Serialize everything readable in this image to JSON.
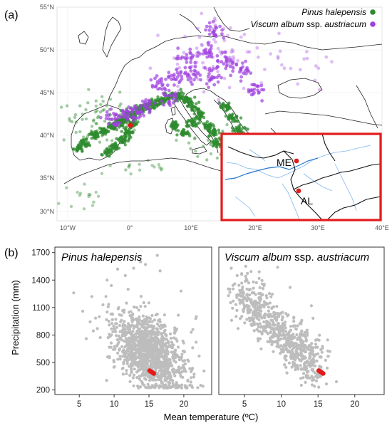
{
  "panel_a": {
    "label": "(a)",
    "legend": {
      "pinus": {
        "italic": "Pinus halepensis",
        "color": "#2e8b2e"
      },
      "viscum": {
        "italic_a": "Viscum album",
        "plain": " ssp. ",
        "italic_b": "austriacum",
        "color": "#a040e0"
      }
    },
    "lat_labels": [
      "30°N",
      "35°N",
      "40°N",
      "45°N",
      "50°N",
      "55°N"
    ],
    "lon_labels": [
      "10°W",
      "0°",
      "10°E",
      "20°E",
      "30°E",
      "40°E"
    ],
    "inset": {
      "border_color": "#e21b1b",
      "sites": [
        {
          "label": "ME"
        },
        {
          "label": "AL"
        }
      ]
    },
    "site_color": "#e21b1b"
  },
  "chart_data": [
    {
      "type": "scatter",
      "title_italic": "Pinus halepensis",
      "panel_label": "(b)",
      "xlabel": "Mean temperature (ºC)",
      "ylabel": "Precipitation (mm)",
      "xlim": [
        1.5,
        24
      ],
      "ylim": [
        150,
        1760
      ],
      "xticks": [
        5,
        10,
        15,
        20
      ],
      "yticks": [
        200,
        500,
        800,
        1100,
        1400,
        1700
      ],
      "tick_labels_x": [
        "5",
        "10",
        "15",
        "20"
      ],
      "tick_labels_y": [
        "200",
        "500",
        "800",
        "1100",
        "1400",
        "1700"
      ],
      "background_color": "#bdbdbd",
      "highlight_color": "#e21b1b",
      "background_cloud": {
        "center": [
          15.0,
          620
        ],
        "spread": [
          2.6,
          190
        ],
        "count": 1200,
        "outliers": [
          [
            4.2,
            1260
          ],
          [
            5.5,
            1060
          ],
          [
            6.8,
            1220
          ],
          [
            8.4,
            1130
          ],
          [
            9.0,
            1400
          ],
          [
            9.6,
            1340
          ],
          [
            10.5,
            1520
          ],
          [
            11.6,
            1450
          ],
          [
            12.8,
            1530
          ],
          [
            13.8,
            1600
          ],
          [
            16.2,
            1670
          ],
          [
            16.6,
            1500
          ],
          [
            14.5,
            1570
          ],
          [
            19.6,
            1280
          ],
          [
            21.3,
            860
          ],
          [
            22.2,
            570
          ],
          [
            21.8,
            1000
          ],
          [
            7.6,
            870
          ],
          [
            6.0,
            760
          ],
          [
            12.0,
            1300
          ]
        ]
      },
      "highlight_points": [
        [
          15.1,
          410
        ],
        [
          15.3,
          400
        ],
        [
          15.5,
          390
        ],
        [
          15.7,
          380
        ]
      ]
    },
    {
      "type": "scatter",
      "title_italic_a": "Viscum album",
      "title_plain": " ssp. ",
      "title_italic_b": "austriacum",
      "xlim": [
        1.5,
        24
      ],
      "ylim": [
        150,
        1760
      ],
      "xticks": [
        5,
        10,
        15,
        20
      ],
      "tick_labels_x": [
        "5",
        "10",
        "15",
        "20"
      ],
      "background_color": "#bdbdbd",
      "highlight_color": "#e21b1b",
      "background_cloud": {
        "center_start": [
          4.5,
          1250
        ],
        "center_end": [
          15.0,
          420
        ],
        "spread": [
          1.0,
          130
        ],
        "count": 700,
        "outliers": [
          [
            3.2,
            1530
          ],
          [
            4.0,
            1450
          ],
          [
            5.6,
            1620
          ],
          [
            7.8,
            1620
          ],
          [
            9.5,
            1540
          ],
          [
            11.2,
            1320
          ],
          [
            14.1,
            1120
          ],
          [
            12.8,
            960
          ],
          [
            17.5,
            290
          ],
          [
            16.6,
            620
          ],
          [
            3.0,
            1300
          ],
          [
            6.2,
            1380
          ]
        ]
      },
      "highlight_points": [
        [
          15.1,
          410
        ],
        [
          15.3,
          400
        ],
        [
          15.5,
          390
        ],
        [
          15.7,
          380
        ]
      ]
    }
  ]
}
